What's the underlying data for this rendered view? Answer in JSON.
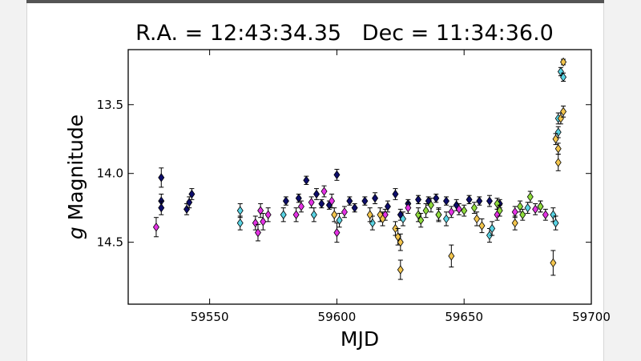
{
  "chart_data": {
    "type": "scatter",
    "title": "R.A. = 12:43:34.35   Dec = 11:34:36.0",
    "xlabel": "MJD",
    "ylabel": "g Magnitude",
    "ylabel_italic_part": "g",
    "ylabel_rest": " Magnitude",
    "xlim": [
      59518,
      59700
    ],
    "ylim": [
      14.95,
      13.1
    ],
    "y_inverted": true,
    "x_ticks": [
      59550,
      59600,
      59650,
      59700
    ],
    "x_tick_labels": [
      "59550",
      "59600",
      "59650",
      "59700"
    ],
    "y_ticks": [
      13.5,
      14.0,
      14.5
    ],
    "y_tick_labels": [
      "13.5",
      "14.0",
      "14.5"
    ],
    "grid": false,
    "marker": "diamond",
    "series": [
      {
        "color": "#0d0d6b",
        "points": [
          [
            59531,
            14.03,
            0.07
          ],
          [
            59531,
            14.2,
            0.05
          ],
          [
            59531,
            14.25,
            0.05
          ],
          [
            59541,
            14.26,
            0.04
          ],
          [
            59542,
            14.21,
            0.04
          ],
          [
            59543,
            14.15,
            0.04
          ],
          [
            59580,
            14.2,
            0.03
          ],
          [
            59585,
            14.18,
            0.03
          ],
          [
            59588,
            14.05,
            0.03
          ],
          [
            59592,
            14.15,
            0.04
          ],
          [
            59594,
            14.22,
            0.03
          ],
          [
            59597,
            14.23,
            0.03
          ],
          [
            59600,
            14.01,
            0.04
          ],
          [
            59605,
            14.2,
            0.03
          ],
          [
            59607,
            14.25,
            0.03
          ],
          [
            59611,
            14.2,
            0.03
          ],
          [
            59615,
            14.18,
            0.04
          ],
          [
            59620,
            14.24,
            0.04
          ],
          [
            59623,
            14.15,
            0.04
          ],
          [
            59625,
            14.3,
            0.04
          ],
          [
            59628,
            14.22,
            0.03
          ],
          [
            59632,
            14.19,
            0.03
          ],
          [
            59636,
            14.2,
            0.03
          ],
          [
            59639,
            14.18,
            0.03
          ],
          [
            59643,
            14.2,
            0.03
          ],
          [
            59647,
            14.23,
            0.04
          ],
          [
            59652,
            14.19,
            0.03
          ],
          [
            59656,
            14.2,
            0.03
          ],
          [
            59660,
            14.2,
            0.04
          ],
          [
            59664,
            14.22,
            0.03
          ]
        ]
      },
      {
        "color": "#e432e4",
        "points": [
          [
            59529,
            14.39,
            0.07
          ],
          [
            59568,
            14.36,
            0.05
          ],
          [
            59569,
            14.43,
            0.06
          ],
          [
            59570,
            14.27,
            0.05
          ],
          [
            59571,
            14.35,
            0.06
          ],
          [
            59573,
            14.3,
            0.05
          ],
          [
            59584,
            14.3,
            0.05
          ],
          [
            59586,
            14.24,
            0.04
          ],
          [
            59590,
            14.21,
            0.04
          ],
          [
            59595,
            14.13,
            0.04
          ],
          [
            59598,
            14.2,
            0.05
          ],
          [
            59600,
            14.43,
            0.07
          ],
          [
            59603,
            14.28,
            0.04
          ],
          [
            59619,
            14.3,
            0.04
          ],
          [
            59628,
            14.25,
            0.04
          ],
          [
            59640,
            14.3,
            0.04
          ],
          [
            59645,
            14.28,
            0.04
          ],
          [
            59648,
            14.26,
            0.04
          ],
          [
            59663,
            14.3,
            0.04
          ],
          [
            59670,
            14.28,
            0.04
          ],
          [
            59678,
            14.26,
            0.04
          ],
          [
            59680,
            14.24,
            0.04
          ],
          [
            59682,
            14.3,
            0.04
          ]
        ]
      },
      {
        "color": "#5ad4e4",
        "points": [
          [
            59562,
            14.27,
            0.05
          ],
          [
            59562,
            14.36,
            0.05
          ],
          [
            59579,
            14.3,
            0.05
          ],
          [
            59591,
            14.3,
            0.05
          ],
          [
            59601,
            14.34,
            0.05
          ],
          [
            59614,
            14.36,
            0.05
          ],
          [
            59626,
            14.33,
            0.05
          ],
          [
            59643,
            14.33,
            0.05
          ],
          [
            59660,
            14.45,
            0.05
          ],
          [
            59661,
            14.4,
            0.05
          ],
          [
            59675,
            14.25,
            0.04
          ],
          [
            59685,
            14.3,
            0.05
          ],
          [
            59686,
            14.36,
            0.05
          ],
          [
            59687,
            13.6,
            0.04
          ],
          [
            59687,
            13.7,
            0.04
          ],
          [
            59688,
            13.26,
            0.03
          ],
          [
            59689,
            13.3,
            0.03
          ]
        ]
      },
      {
        "color": "#8fdc3c",
        "points": [
          [
            59632,
            14.3,
            0.05
          ],
          [
            59633,
            14.34,
            0.05
          ],
          [
            59635,
            14.27,
            0.05
          ],
          [
            59637,
            14.23,
            0.05
          ],
          [
            59640,
            14.3,
            0.05
          ],
          [
            59650,
            14.27,
            0.04
          ],
          [
            59654,
            14.25,
            0.04
          ],
          [
            59663,
            14.22,
            0.04
          ],
          [
            59664,
            14.27,
            0.04
          ],
          [
            59672,
            14.24,
            0.04
          ],
          [
            59673,
            14.3,
            0.04
          ],
          [
            59676,
            14.17,
            0.04
          ],
          [
            59680,
            14.24,
            0.04
          ]
        ]
      },
      {
        "color": "#f3c54d",
        "points": [
          [
            59599,
            14.3,
            0.05
          ],
          [
            59613,
            14.3,
            0.05
          ],
          [
            59617,
            14.3,
            0.05
          ],
          [
            59618,
            14.33,
            0.05
          ],
          [
            59623,
            14.4,
            0.05
          ],
          [
            59624,
            14.46,
            0.06
          ],
          [
            59625,
            14.5,
            0.06
          ],
          [
            59625,
            14.7,
            0.07
          ],
          [
            59645,
            14.6,
            0.08
          ],
          [
            59655,
            14.33,
            0.05
          ],
          [
            59657,
            14.38,
            0.05
          ],
          [
            59670,
            14.36,
            0.05
          ],
          [
            59685,
            14.65,
            0.09
          ],
          [
            59686,
            13.75,
            0.04
          ],
          [
            59687,
            13.82,
            0.04
          ],
          [
            59687,
            13.92,
            0.06
          ],
          [
            59688,
            13.6,
            0.04
          ],
          [
            59689,
            13.55,
            0.04
          ],
          [
            59689,
            13.19,
            0.02
          ]
        ]
      }
    ]
  }
}
